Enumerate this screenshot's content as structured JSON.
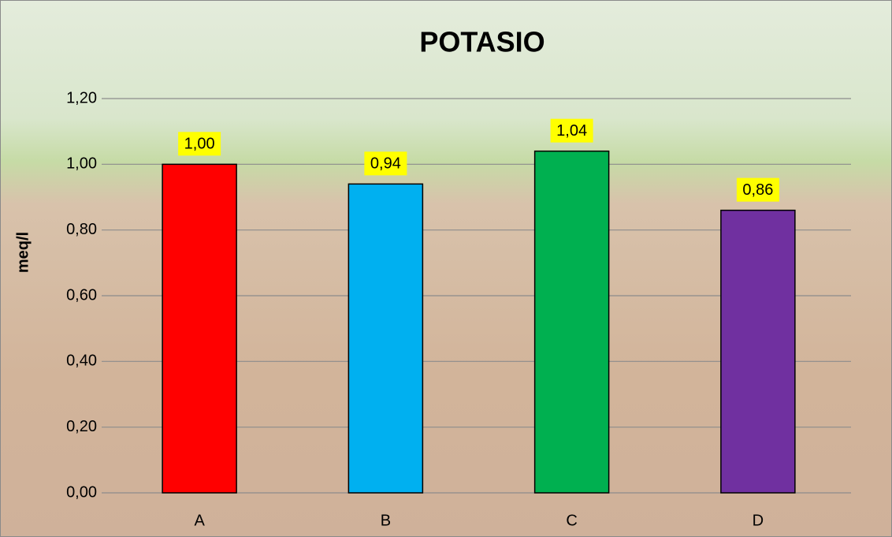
{
  "chart_data": {
    "type": "bar",
    "title": "POTASIO",
    "y_label": "meq/l",
    "categories": [
      "A",
      "B",
      "C",
      "D"
    ],
    "values": [
      1.0,
      0.94,
      1.04,
      0.86
    ],
    "value_labels": [
      "1,00",
      "0,94",
      "1,04",
      "0,86"
    ],
    "colors": [
      "#ff0000",
      "#00b0f0",
      "#00b050",
      "#7030a0"
    ],
    "ylim": [
      0,
      1.2
    ],
    "yticks": [
      {
        "value": 0,
        "label": "0,00"
      },
      {
        "value": 0.2,
        "label": "0,20"
      },
      {
        "value": 0.4,
        "label": "0,40"
      },
      {
        "value": 0.6,
        "label": "0,60"
      },
      {
        "value": 0.8,
        "label": "0,80"
      },
      {
        "value": 1.0,
        "label": "1,00"
      },
      {
        "value": 1.2,
        "label": "1,20"
      }
    ],
    "grid": true
  }
}
